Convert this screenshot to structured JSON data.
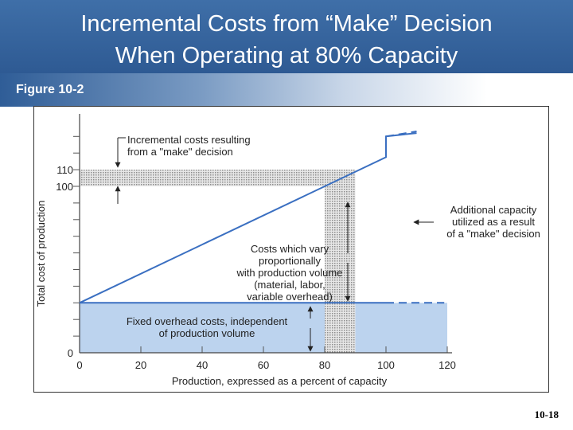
{
  "title": {
    "line1": "Incremental Costs from “Make” Decision",
    "line2": "When Operating at 80% Capacity"
  },
  "figure_label": "Figure 10-2",
  "slide_number": "10-18",
  "chart_data": {
    "type": "line",
    "xlabel": "Production, expressed as a percent of capacity",
    "ylabel": "Total cost of production",
    "xlim": [
      0,
      120
    ],
    "ylim": [
      0,
      130
    ],
    "x_ticks": [
      "0",
      "20",
      "40",
      "60",
      "80",
      "100",
      "120"
    ],
    "y_tick_labels": [
      {
        "value": 0,
        "label": "0"
      },
      {
        "value": 100,
        "label": "100"
      },
      {
        "value": 110,
        "label": "110"
      }
    ],
    "series": [
      {
        "style": "solid",
        "color": "#3a6fc1",
        "points": [
          [
            0,
            30
          ],
          [
            80,
            100
          ],
          [
            100,
            117.5
          ],
          [
            100,
            130
          ],
          [
            110,
            132
          ]
        ]
      },
      {
        "style": "dashed",
        "color": "#3a6fc1",
        "points": [
          [
            100,
            130
          ],
          [
            110,
            133
          ]
        ]
      },
      {
        "style": "solid",
        "color": "#3a6fc1",
        "points": [
          [
            0,
            30
          ],
          [
            100,
            30
          ]
        ]
      },
      {
        "style": "dashed",
        "color": "#3a6fc1",
        "points": [
          [
            100,
            30
          ],
          [
            119,
            30
          ]
        ]
      }
    ],
    "bands": {
      "fixed_overhead": {
        "x": [
          0,
          120
        ],
        "y": [
          0,
          30
        ],
        "color": "#bcd3ee"
      },
      "incremental_cost": {
        "x": [
          0,
          90
        ],
        "y": [
          100,
          110
        ]
      },
      "additional_capacity": {
        "x": [
          80,
          90
        ],
        "y": [
          0,
          110
        ]
      }
    },
    "annotations": {
      "incremental": [
        "Incremental costs resulting",
        "from a \"make\" decision"
      ],
      "capacity": [
        "Additional capacity",
        "utilized as a result",
        "of a \"make\" decision"
      ],
      "variable": [
        "Costs which vary",
        "proportionally",
        "with production volume",
        "(material, labor,",
        "variable overhead)"
      ],
      "fixed": [
        "Fixed overhead costs, independent",
        "of production volume"
      ]
    }
  }
}
